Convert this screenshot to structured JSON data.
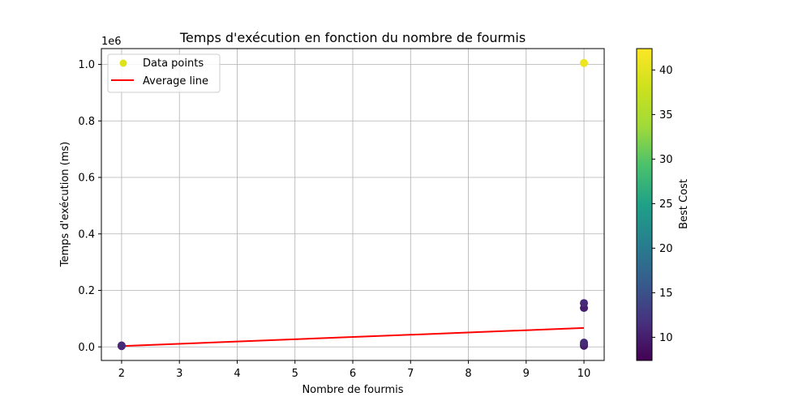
{
  "chart_data": {
    "type": "scatter",
    "title": "Temps d'exécution en fonction du nombre de fourmis",
    "xlabel": "Nombre de fourmis",
    "ylabel": "Temps d'exécution (ms)",
    "y_offset_label": "1e6",
    "y_scale_factor": 1000000,
    "xlim": [
      1.65,
      10.35
    ],
    "ylim": [
      -48000,
      1056000
    ],
    "x_ticks": [
      2,
      3,
      4,
      5,
      6,
      7,
      8,
      9,
      10
    ],
    "y_ticks": [
      0,
      200000,
      400000,
      600000,
      800000,
      1000000
    ],
    "y_tick_labels": [
      "0.0",
      "0.2",
      "0.4",
      "0.6",
      "0.8",
      "1.0"
    ],
    "grid": true,
    "legend_position": "top-left",
    "series": [
      {
        "name": "Data points",
        "kind": "scatter",
        "legend_color": "#dde318",
        "points": [
          {
            "x": 2,
            "y": 3000,
            "cost": 10
          },
          {
            "x": 2,
            "y": 5000,
            "cost": 11
          },
          {
            "x": 10,
            "y": 4000,
            "cost": 9
          },
          {
            "x": 10,
            "y": 8000,
            "cost": 10
          },
          {
            "x": 10,
            "y": 15000,
            "cost": 11
          },
          {
            "x": 10,
            "y": 138000,
            "cost": 10
          },
          {
            "x": 10,
            "y": 155000,
            "cost": 11
          },
          {
            "x": 10,
            "y": 1005000,
            "cost": 41
          }
        ]
      },
      {
        "name": "Average line",
        "kind": "line",
        "color": "#ff0000",
        "x": [
          2,
          10
        ],
        "y": [
          3000,
          67000
        ]
      }
    ],
    "colorbar": {
      "label": "Best Cost",
      "min": 7.4,
      "max": 42.4,
      "ticks": [
        10,
        15,
        20,
        25,
        30,
        35,
        40
      ],
      "colormap": "viridis"
    }
  }
}
